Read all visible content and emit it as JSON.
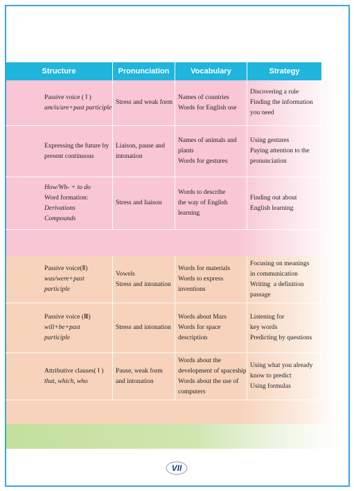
{
  "table": {
    "headers": [
      "Structure",
      "Pronunciation",
      "Vocabulary",
      "Strategy"
    ],
    "rows": [
      [
        [
          "Passive voice ( Ⅰ )",
          "am/is/are+past participle"
        ],
        [
          "Stress and weak form"
        ],
        [
          "Names of countries",
          "Words for English use"
        ],
        [
          "Discovering a rule",
          "Finding the information",
          "you need"
        ]
      ],
      [
        [
          "Expressing the future by",
          "present continuous"
        ],
        [
          "Liaison, pause and",
          "intonation"
        ],
        [
          "Names of animals and",
          "plants",
          "Words for gestures"
        ],
        [
          "Using gestures",
          "Paying attention to the",
          "pronunciation"
        ]
      ],
      [
        [
          "How/Wh- + to do",
          "Word formation:",
          "Derivations",
          "Compounds"
        ],
        [
          "Stress and liaison"
        ],
        [
          "Words to describe",
          "the way of English",
          "learning"
        ],
        [
          "Finding out about",
          "English learning"
        ]
      ],
      [
        [
          "Passive voice(Ⅱ)",
          "was/were+past",
          "participle"
        ],
        [
          "Vowels",
          "Stress and intonation"
        ],
        [
          "Words for materials",
          "Words to express",
          "inventions"
        ],
        [
          "Focusing on meanings",
          "in communication",
          "Writing  a definition",
          "passage"
        ]
      ],
      [
        [
          "Passive voice (Ⅲ)",
          "will+be+past",
          "participle"
        ],
        [
          "Stress and intonation"
        ],
        [
          "Words about Mars",
          "Words for space",
          "description"
        ],
        [
          "Listening for",
          "key words",
          "Predicting by questions"
        ]
      ],
      [
        [
          "Attributive clauses( Ⅰ )",
          "that, which, who"
        ],
        [
          "Pause, weak form",
          "and intonation"
        ],
        [
          "Words about the",
          "development of spaceship",
          "Words about the use of",
          "computers"
        ],
        [
          "Using what you already",
          "know to predict",
          "Using formulas"
        ]
      ]
    ]
  },
  "footer": {
    "page_number": "VII"
  }
}
